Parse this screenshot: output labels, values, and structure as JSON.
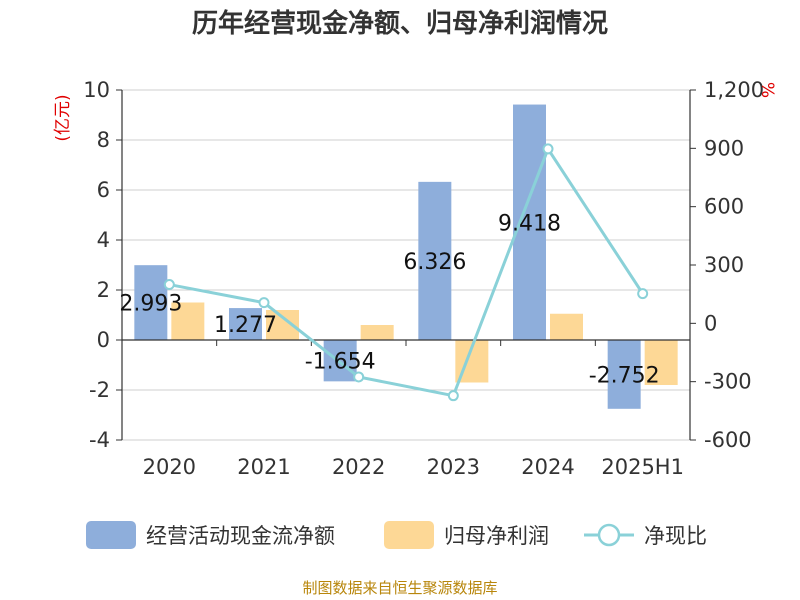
{
  "chart_data": {
    "type": "bar",
    "title": "历年经营现金净额、归母净利润情况",
    "categories": [
      "2020",
      "2021",
      "2022",
      "2023",
      "2024",
      "2025H1"
    ],
    "y_left": {
      "unit": "(亿元)",
      "ylim": [
        -4,
        10
      ],
      "ticks": [
        "10",
        "8",
        "6",
        "4",
        "2",
        "0",
        "-2",
        "-4"
      ]
    },
    "y_right": {
      "unit": "%",
      "ylim": [
        -600,
        1200
      ],
      "ticks": [
        "1,200",
        "900",
        "600",
        "300",
        "0",
        "-300",
        "-600"
      ]
    },
    "series": [
      {
        "name": "经营活动现金流净额",
        "type": "bar",
        "axis": "left",
        "color": "#8eaedb",
        "values": [
          2.993,
          1.277,
          -1.654,
          6.326,
          9.418,
          -2.752
        ],
        "labels": [
          "2.993",
          "1.277",
          "-1.654",
          "6.326",
          "9.418",
          "-2.752"
        ]
      },
      {
        "name": "归母净利润",
        "type": "bar",
        "axis": "left",
        "color": "#fdd896",
        "values": [
          1.5,
          1.2,
          0.6,
          -1.7,
          1.05,
          -1.8
        ]
      },
      {
        "name": "净现比",
        "type": "line",
        "axis": "right",
        "color": "#8ad1d8",
        "values": [
          199.5,
          106.4,
          -275.7,
          -372.1,
          896.9,
          152.9
        ]
      }
    ],
    "grid": true,
    "legend_position": "bottom"
  },
  "source": "制图数据来自恒生聚源数据库"
}
